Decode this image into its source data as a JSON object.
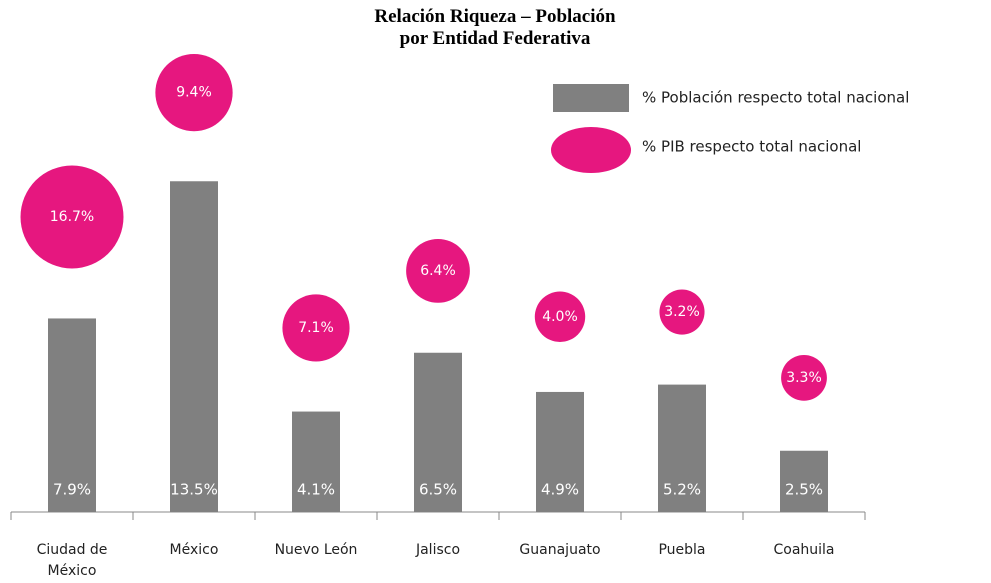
{
  "chart_data": {
    "type": "bar",
    "title": "Relación Riqueza – Población\npor Entidad Federativa",
    "categories": [
      "Ciudad de México",
      "México",
      "Nuevo León",
      "Jalisco",
      "Guanajuato",
      "Puebla",
      "Coahuila"
    ],
    "series": [
      {
        "name": "% Población respecto total nacional",
        "color": "#808080",
        "values": [
          7.9,
          13.5,
          4.1,
          6.5,
          4.9,
          5.2,
          2.5
        ],
        "value_labels": [
          "7.9%",
          "13.5%",
          "4.1%",
          "6.5%",
          "4.9%",
          "5.2%",
          "2.5%"
        ]
      },
      {
        "name": "% PIB respecto total nacional",
        "color": "#e6177f",
        "values": [
          16.7,
          9.4,
          7.1,
          6.4,
          4.0,
          3.2,
          3.3
        ],
        "value_labels": [
          "16.7%",
          "9.4%",
          "7.1%",
          "6.4%",
          "4.0%",
          "3.2%",
          "3.3%"
        ]
      }
    ]
  }
}
